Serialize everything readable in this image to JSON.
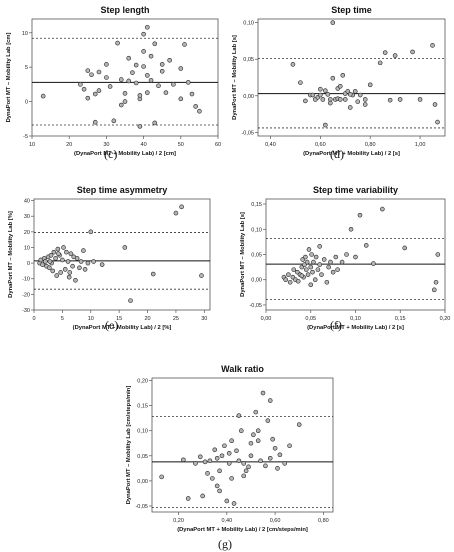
{
  "panel_letters": [
    "(c)",
    "(d)",
    "(e)",
    "(f)",
    "(g)"
  ],
  "chart_data": [
    {
      "type": "scatter",
      "title": "Step length",
      "xlabel": "(DynaPort MT + Mobility Lab) / 2 [cm]",
      "ylabel": "DynaPort MT – Mobility Lab [cm]",
      "xlim": [
        10,
        60
      ],
      "ylim": [
        -5,
        12
      ],
      "xticks": [
        10,
        20,
        30,
        40,
        50,
        60
      ],
      "yticks": [
        -5,
        0,
        5,
        10
      ],
      "mean": 2.8,
      "loa_upper": 9.2,
      "loa_lower": -3.4,
      "x": [
        13,
        23,
        24,
        25,
        25,
        26,
        27,
        28,
        28,
        30,
        31,
        32,
        33,
        34,
        35,
        35,
        36,
        36,
        37,
        38,
        38,
        39,
        39,
        40,
        40,
        40,
        41,
        41,
        41,
        42,
        42,
        43,
        43,
        44,
        45,
        46,
        47,
        48,
        50,
        51,
        52,
        53,
        54,
        55,
        30,
        34,
        39,
        45,
        50,
        27
      ],
      "y": [
        0.8,
        2.5,
        1.8,
        4.5,
        0.5,
        3.9,
        -3,
        4.3,
        1.6,
        5.4,
        2.2,
        -2.8,
        8.5,
        3.2,
        0,
        1.2,
        6.3,
        3,
        4.2,
        5.3,
        2.7,
        0.4,
        -3.6,
        9.8,
        7.3,
        5.1,
        3.8,
        1.3,
        10.8,
        6.6,
        3.1,
        8.4,
        -3.1,
        2.3,
        4.4,
        1.3,
        6,
        2.5,
        4.8,
        8.3,
        2.8,
        1.1,
        -0.7,
        -1.4,
        3.5,
        -0.5,
        0.9,
        5.4,
        0.4,
        1.1
      ]
    },
    {
      "type": "scatter",
      "title": "Step time",
      "xlabel": "(DynaPort MT + Mobility Lab) / 2 [s]",
      "ylabel": "DynaPort MT – Mobility Lab [s]",
      "xlim": [
        0.35,
        1.1
      ],
      "ylim": [
        -0.055,
        0.105
      ],
      "xticks": [
        0.4,
        0.6,
        0.8,
        1.0
      ],
      "xtick_labels": [
        "0,40",
        "0,60",
        "0,80",
        "1,00"
      ],
      "yticks": [
        -0.05,
        0,
        0.05,
        0.1
      ],
      "ytick_labels": [
        "-0,05",
        "0,00",
        "0,05",
        "0,10"
      ],
      "mean": 0.003,
      "loa_upper": 0.051,
      "loa_lower": -0.044,
      "x": [
        0.49,
        0.52,
        0.54,
        0.56,
        0.57,
        0.58,
        0.59,
        0.6,
        0.61,
        0.62,
        0.62,
        0.63,
        0.64,
        0.65,
        0.65,
        0.66,
        0.67,
        0.67,
        0.68,
        0.69,
        0.7,
        0.7,
        0.71,
        0.72,
        0.73,
        0.74,
        0.75,
        0.76,
        0.78,
        0.8,
        0.84,
        0.86,
        0.88,
        0.9,
        0.92,
        0.97,
        1.0,
        1.05,
        1.06,
        1.07,
        0.6,
        0.64,
        0.68,
        0.72,
        0.78
      ],
      "y": [
        0.043,
        0.018,
        -0.007,
        0.001,
        0.001,
        -0.005,
        -0.002,
        0.001,
        -0.005,
        0.007,
        -0.04,
        0.002,
        -0.005,
        0.1,
        0.024,
        -0.005,
        0.01,
        -0.004,
        -0.005,
        0.028,
        -0.005,
        0.003,
        0.006,
        -0.016,
        0.001,
        0.006,
        -0.008,
        0.001,
        -0.005,
        0.015,
        0.045,
        0.059,
        -0.006,
        0.055,
        -0.005,
        0.06,
        -0.005,
        0.069,
        -0.012,
        -0.036,
        0.009,
        -0.01,
        0.013,
        0.002,
        -0.012
      ]
    },
    {
      "type": "scatter",
      "title": "Step time asymmetry",
      "xlabel": "(DynaPort MT + Mobility Lab) / 2 [%]",
      "ylabel": "DynaPort MT – Mobility Lab [%]",
      "xlim": [
        0,
        31
      ],
      "ylim": [
        -30,
        41
      ],
      "xticks": [
        0,
        5,
        10,
        15,
        20,
        25,
        30
      ],
      "yticks": [
        -30,
        -20,
        -10,
        0,
        10,
        20,
        30,
        40
      ],
      "mean": 1.4,
      "loa_upper": 19.6,
      "loa_lower": -16.7,
      "x": [
        1,
        1.2,
        1.5,
        1.8,
        2,
        2.2,
        2.5,
        2.7,
        3,
        3.1,
        3.3,
        3.5,
        3.8,
        4,
        4.2,
        4.5,
        4.7,
        5,
        5.2,
        5.5,
        5.7,
        6,
        6.2,
        6.5,
        6.8,
        7,
        7.3,
        7.6,
        8,
        8.3,
        8.7,
        9,
        9.5,
        10,
        10.5,
        12,
        16,
        17,
        21,
        25,
        26,
        29.5,
        2.8,
        4.3,
        6.3
      ],
      "y": [
        0,
        2,
        -1,
        3,
        1,
        -2,
        4,
        -3,
        5,
        0,
        -5,
        7,
        3,
        -8,
        9,
        5,
        -6,
        2,
        10,
        -4,
        7,
        1,
        -9,
        6,
        -2,
        4,
        -11,
        3,
        -3,
        1,
        8,
        -4,
        0,
        20,
        1,
        -1,
        10,
        -24,
        -7,
        32,
        36,
        -8,
        1,
        6,
        -6
      ]
    },
    {
      "type": "scatter",
      "title": "Step time variability",
      "xlabel": "(DynaPort MT + Mobility Lab) / 2 [s]",
      "ylabel": "DynaPort MT – Mobility Lab [s]",
      "xlim": [
        0,
        0.2
      ],
      "ylim": [
        -0.06,
        0.16
      ],
      "xticks": [
        0,
        0.05,
        0.1,
        0.15,
        0.2
      ],
      "xtick_labels": [
        "0,00",
        "0,05",
        "0,10",
        "0,15",
        "0,20"
      ],
      "yticks": [
        -0.05,
        0,
        0.05,
        0.1,
        0.15
      ],
      "ytick_labels": [
        "-0,05",
        "0,00",
        "0,05",
        "0,10",
        "0,15"
      ],
      "mean": 0.031,
      "loa_upper": 0.082,
      "loa_lower": -0.039,
      "x": [
        0.02,
        0.022,
        0.025,
        0.027,
        0.03,
        0.031,
        0.033,
        0.035,
        0.036,
        0.038,
        0.04,
        0.041,
        0.042,
        0.043,
        0.044,
        0.045,
        0.046,
        0.047,
        0.048,
        0.05,
        0.051,
        0.052,
        0.053,
        0.055,
        0.056,
        0.058,
        0.06,
        0.062,
        0.065,
        0.068,
        0.07,
        0.072,
        0.075,
        0.078,
        0.08,
        0.085,
        0.09,
        0.095,
        0.1,
        0.105,
        0.112,
        0.12,
        0.13,
        0.155,
        0.188,
        0.19,
        0.192,
        0.04,
        0.05,
        0.06
      ],
      "y": [
        0.005,
        0,
        0.01,
        -0.005,
        0.005,
        0.02,
        0,
        0.015,
        -0.003,
        0.01,
        0.025,
        0.04,
        0.005,
        0.03,
        0.045,
        0.02,
        0.035,
        0.01,
        0.06,
        0.025,
        0.05,
        0.015,
        0.035,
        0,
        0.045,
        0.02,
        0.03,
        0.01,
        0.04,
        -0.005,
        0.025,
        0.035,
        0.015,
        0.045,
        0.02,
        0.035,
        0.05,
        0.1,
        0.045,
        0.128,
        0.068,
        0.032,
        0.14,
        0.063,
        -0.02,
        -0.005,
        0.05,
        0.008,
        -0.01,
        0.066
      ]
    },
    {
      "type": "scatter",
      "title": "Walk ratio",
      "xlabel": "(DynaPort MT + Mobility Lab) / 2 [cm/steps/min]",
      "ylabel": "DynaPort MT – Mobility Lab [cm/steps/min]",
      "xlim": [
        0.09,
        0.84
      ],
      "ylim": [
        -0.062,
        0.205
      ],
      "xticks": [
        0.2,
        0.4,
        0.6,
        0.8
      ],
      "xtick_labels": [
        "0,20",
        "0,40",
        "0,60",
        "0,80"
      ],
      "yticks": [
        -0.05,
        0,
        0.05,
        0.1,
        0.15,
        0.2
      ],
      "ytick_labels": [
        "-0,05",
        "0,00",
        "0,05",
        "0,10",
        "0,15",
        "0,20"
      ],
      "mean": 0.038,
      "loa_upper": 0.128,
      "loa_lower": -0.053,
      "x": [
        0.13,
        0.22,
        0.24,
        0.27,
        0.29,
        0.3,
        0.31,
        0.32,
        0.33,
        0.34,
        0.35,
        0.36,
        0.37,
        0.37,
        0.38,
        0.39,
        0.4,
        0.41,
        0.42,
        0.42,
        0.43,
        0.44,
        0.45,
        0.45,
        0.46,
        0.47,
        0.48,
        0.49,
        0.5,
        0.5,
        0.51,
        0.52,
        0.53,
        0.54,
        0.55,
        0.56,
        0.57,
        0.58,
        0.59,
        0.6,
        0.61,
        0.62,
        0.64,
        0.66,
        0.7,
        0.36,
        0.41,
        0.47,
        0.53,
        0.58
      ],
      "y": [
        0.008,
        0.042,
        -0.035,
        0.035,
        0.048,
        -0.03,
        0.038,
        0.015,
        0.04,
        0.005,
        0.062,
        0.045,
        -0.02,
        0.02,
        0.05,
        0.07,
        -0.04,
        0.035,
        0.08,
        0.005,
        -0.045,
        0.06,
        0.04,
        0.13,
        0.1,
        0.035,
        0.02,
        0.028,
        0.075,
        0.05,
        0.092,
        0.137,
        0.1,
        0.04,
        0.175,
        0.03,
        0.12,
        0.16,
        0.083,
        0.065,
        0.025,
        0.052,
        0.035,
        0.07,
        0.112,
        -0.01,
        0.055,
        0.01,
        0.08,
        0.045
      ]
    }
  ]
}
